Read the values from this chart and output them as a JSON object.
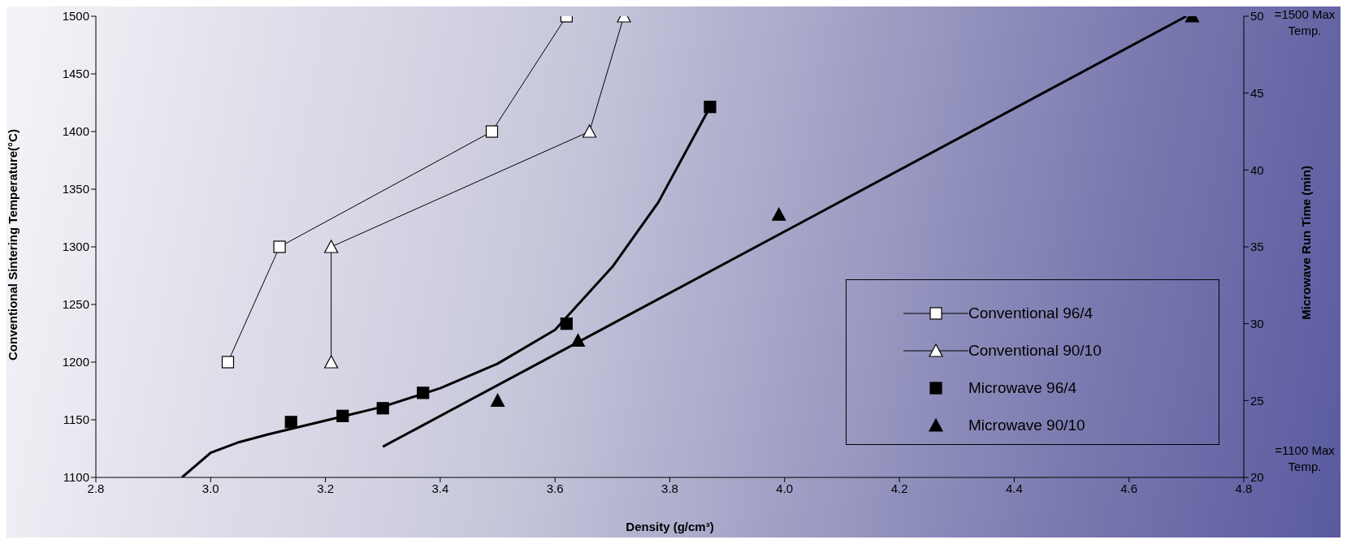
{
  "chart_data": {
    "type": "line",
    "xlabel": "Density (g/cm³)",
    "ylabel": "Conventional Sintering Temperature(°C)",
    "y2label": "Microwave Run Time (min)",
    "xlim": [
      2.8,
      4.8
    ],
    "xticks": [
      {
        "value": 2.8,
        "label": "2.8"
      },
      {
        "value": 3,
        "label": "3.0"
      },
      {
        "value": 3.2,
        "label": "3.2"
      },
      {
        "value": 3.4,
        "label": "3.4"
      },
      {
        "value": 3.6,
        "label": "3.6"
      },
      {
        "value": 3.8,
        "label": "3.8"
      },
      {
        "value": 4,
        "label": "4.0"
      },
      {
        "value": 4.2,
        "label": "4.2"
      },
      {
        "value": 4.4,
        "label": "4.4"
      },
      {
        "value": 4.6,
        "label": "4.6"
      },
      {
        "value": 4.8,
        "label": "4.8"
      }
    ],
    "ylim": [
      1100,
      1500
    ],
    "yticks": [
      1100,
      1150,
      1200,
      1250,
      1300,
      1350,
      1400,
      1450,
      1500
    ],
    "y2lim": [
      20,
      50
    ],
    "y2ticks": [
      20,
      25,
      30,
      35,
      40,
      45,
      50
    ],
    "annotations": [
      "=1500 Max Temp.",
      "=1100 Max Temp."
    ],
    "legend": "bottom right",
    "grid": false,
    "series": [
      {
        "name": "Conventional 96/4",
        "marker": "square",
        "color": "#000000",
        "x": [
          3.03,
          3.12,
          3.49,
          3.62
        ],
        "values": [
          1200,
          1300,
          1400,
          1500
        ]
      },
      {
        "name": "Conventional 90/10",
        "marker": "triangle",
        "color": "#000000",
        "x": [
          3.21,
          3.21,
          3.66,
          3.72
        ],
        "values": [
          1200,
          1300,
          1400,
          1500
        ]
      },
      {
        "name": "Microwave 96/4",
        "type": "scatter",
        "marker": "square",
        "axis": "y2",
        "color": "#000000",
        "x": [
          3.14,
          3.23,
          3.3,
          3.37,
          3.62,
          3.87
        ],
        "values": [
          23.6,
          24,
          24.5,
          25.5,
          30,
          44.1
        ]
      },
      {
        "name": "Microwave 90/10",
        "type": "scatter",
        "marker": "triangle",
        "axis": "y2",
        "color": "#000000",
        "x": [
          3.5,
          3.64,
          3.99,
          4.71
        ],
        "values": [
          25,
          28.9,
          37.1,
          50
        ]
      },
      {
        "marker": "none",
        "axis": "y2",
        "color": "#000000",
        "x": [
          2.95,
          3,
          3.05,
          3.1,
          3.2,
          3.3,
          3.4,
          3.5,
          3.6,
          3.7,
          3.78,
          3.87
        ],
        "values": [
          20,
          21.6,
          22.3,
          22.8,
          23.7,
          24.6,
          25.8,
          27.4,
          29.6,
          33.7,
          37.9,
          44.1
        ]
      },
      {
        "marker": "none",
        "axis": "y2",
        "color": "#000000",
        "x": [
          3.3,
          4.7
        ],
        "values": [
          22,
          50
        ]
      }
    ]
  }
}
